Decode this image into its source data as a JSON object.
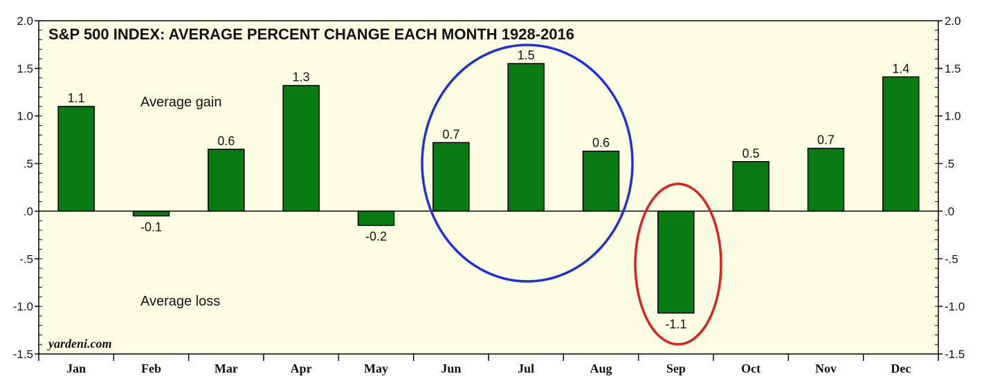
{
  "chart_data": {
    "type": "bar",
    "title": "S&P 500 INDEX: AVERAGE PERCENT CHANGE EACH MONTH 1928-2016",
    "categories": [
      "Jan",
      "Feb",
      "Mar",
      "Apr",
      "May",
      "Jun",
      "Jul",
      "Aug",
      "Sep",
      "Oct",
      "Nov",
      "Dec"
    ],
    "values": [
      1.1,
      -0.05,
      0.65,
      1.32,
      -0.15,
      0.72,
      1.55,
      0.63,
      -1.07,
      0.52,
      0.66,
      1.41
    ],
    "data_labels": [
      "1.1",
      "-0.1",
      "0.6",
      "1.3",
      "-0.2",
      "0.7",
      "1.5",
      "0.6",
      "-1.1",
      "0.5",
      "0.7",
      "1.4"
    ],
    "ylim": [
      -1.5,
      2.0
    ],
    "yticks": [
      2.0,
      1.5,
      1.0,
      0.5,
      0.0,
      -0.5,
      -1.0,
      -1.5
    ],
    "ytick_labels": [
      "2.0",
      "1.5",
      "1.0",
      ".5",
      ".0",
      "-.5",
      "-1.0",
      "-1.5"
    ],
    "xlabel": "",
    "ylabel": "",
    "grid": false,
    "annotations": {
      "gain": "Average gain",
      "loss": "Average loss"
    },
    "source": "yardeni.com",
    "highlights": [
      {
        "months": [
          "Jun",
          "Jul",
          "Aug"
        ],
        "shape": "circle",
        "color": "#1f2fe0"
      },
      {
        "months": [
          "Sep"
        ],
        "shape": "ellipse",
        "color": "#e01f1f"
      }
    ],
    "colors": {
      "bar_fill": "#0a7a12",
      "bar_stroke": "#000000",
      "plot_background": "#fdfde4"
    }
  }
}
